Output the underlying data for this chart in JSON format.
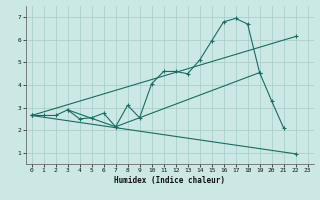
{
  "xlabel": "Humidex (Indice chaleur)",
  "background_color": "#cce8e5",
  "grid_color": "#aacfcc",
  "line_color": "#1a6b60",
  "xlim": [
    -0.5,
    23.5
  ],
  "ylim": [
    0.5,
    7.5
  ],
  "xticks": [
    0,
    1,
    2,
    3,
    4,
    5,
    6,
    7,
    8,
    9,
    10,
    11,
    12,
    13,
    14,
    15,
    16,
    17,
    18,
    19,
    20,
    21,
    22,
    23
  ],
  "yticks": [
    1,
    2,
    3,
    4,
    5,
    6,
    7
  ],
  "curve1_x": [
    0,
    1,
    2,
    3,
    4,
    5,
    6,
    7,
    8,
    9,
    10,
    11,
    12,
    13,
    14,
    15,
    16,
    17,
    18,
    19,
    20,
    21
  ],
  "curve1_y": [
    2.65,
    2.65,
    2.65,
    2.9,
    2.5,
    2.55,
    2.75,
    2.15,
    3.1,
    2.55,
    4.05,
    4.6,
    4.6,
    4.5,
    5.1,
    5.95,
    6.8,
    6.95,
    6.7,
    4.55,
    3.3,
    2.1
  ],
  "curve2_x": [
    0,
    22
  ],
  "curve2_y": [
    2.65,
    6.15
  ],
  "curve3_x": [
    0,
    22
  ],
  "curve3_y": [
    2.65,
    0.95
  ],
  "curve4_x": [
    3,
    7,
    19
  ],
  "curve4_y": [
    2.9,
    2.15,
    4.55
  ]
}
